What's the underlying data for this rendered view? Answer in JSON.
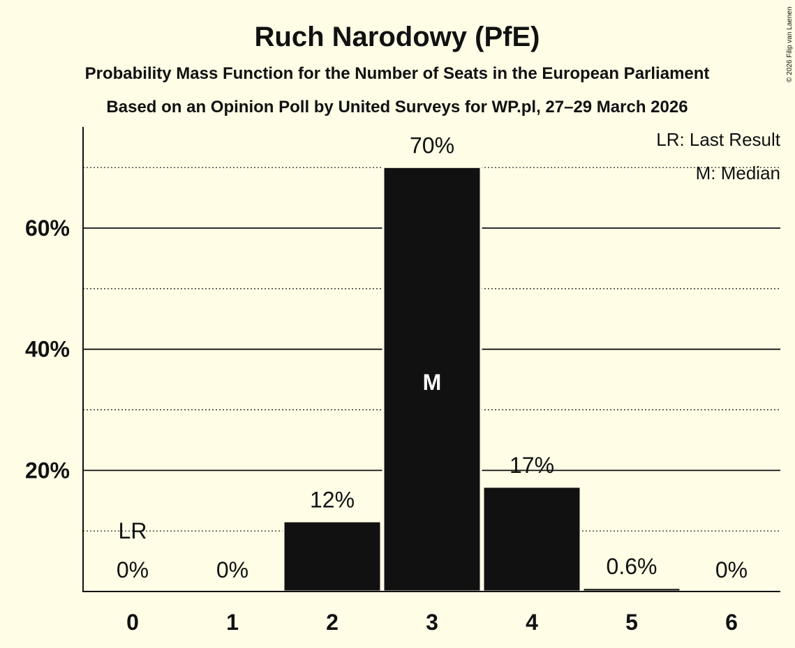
{
  "chart_data": {
    "type": "bar",
    "title": "Ruch Narodowy (PfE)",
    "subtitle": "Probability Mass Function for the Number of Seats in the European Parliament",
    "subtitle2": "Based on an Opinion Poll by United Surveys for WP.pl, 27–29 March 2026",
    "categories": [
      "0",
      "1",
      "2",
      "3",
      "4",
      "5",
      "6"
    ],
    "values": [
      0,
      0,
      11.6,
      70.1,
      17.3,
      0.6,
      0
    ],
    "data_labels": [
      "0%",
      "0%",
      "12%",
      "70%",
      "17%",
      "0.6%",
      "0%"
    ],
    "ylim": [
      0,
      77
    ],
    "yticks": [
      20,
      40,
      60
    ],
    "ytick_labels": [
      "20%",
      "40%",
      "60%"
    ],
    "minor_gridlines": [
      10,
      30,
      50,
      70
    ],
    "grid": true,
    "last_result_index": 0,
    "last_result_label": "LR",
    "median_index": 3,
    "median_label": "M",
    "legend": [
      "LR: Last Result",
      "M: Median"
    ],
    "legend_placement": "top-right",
    "copyright": "© 2026 Filip van Laenen",
    "colors": {
      "bar": "#111111",
      "background": "#fffde6",
      "median_text": "#ffffff"
    }
  }
}
